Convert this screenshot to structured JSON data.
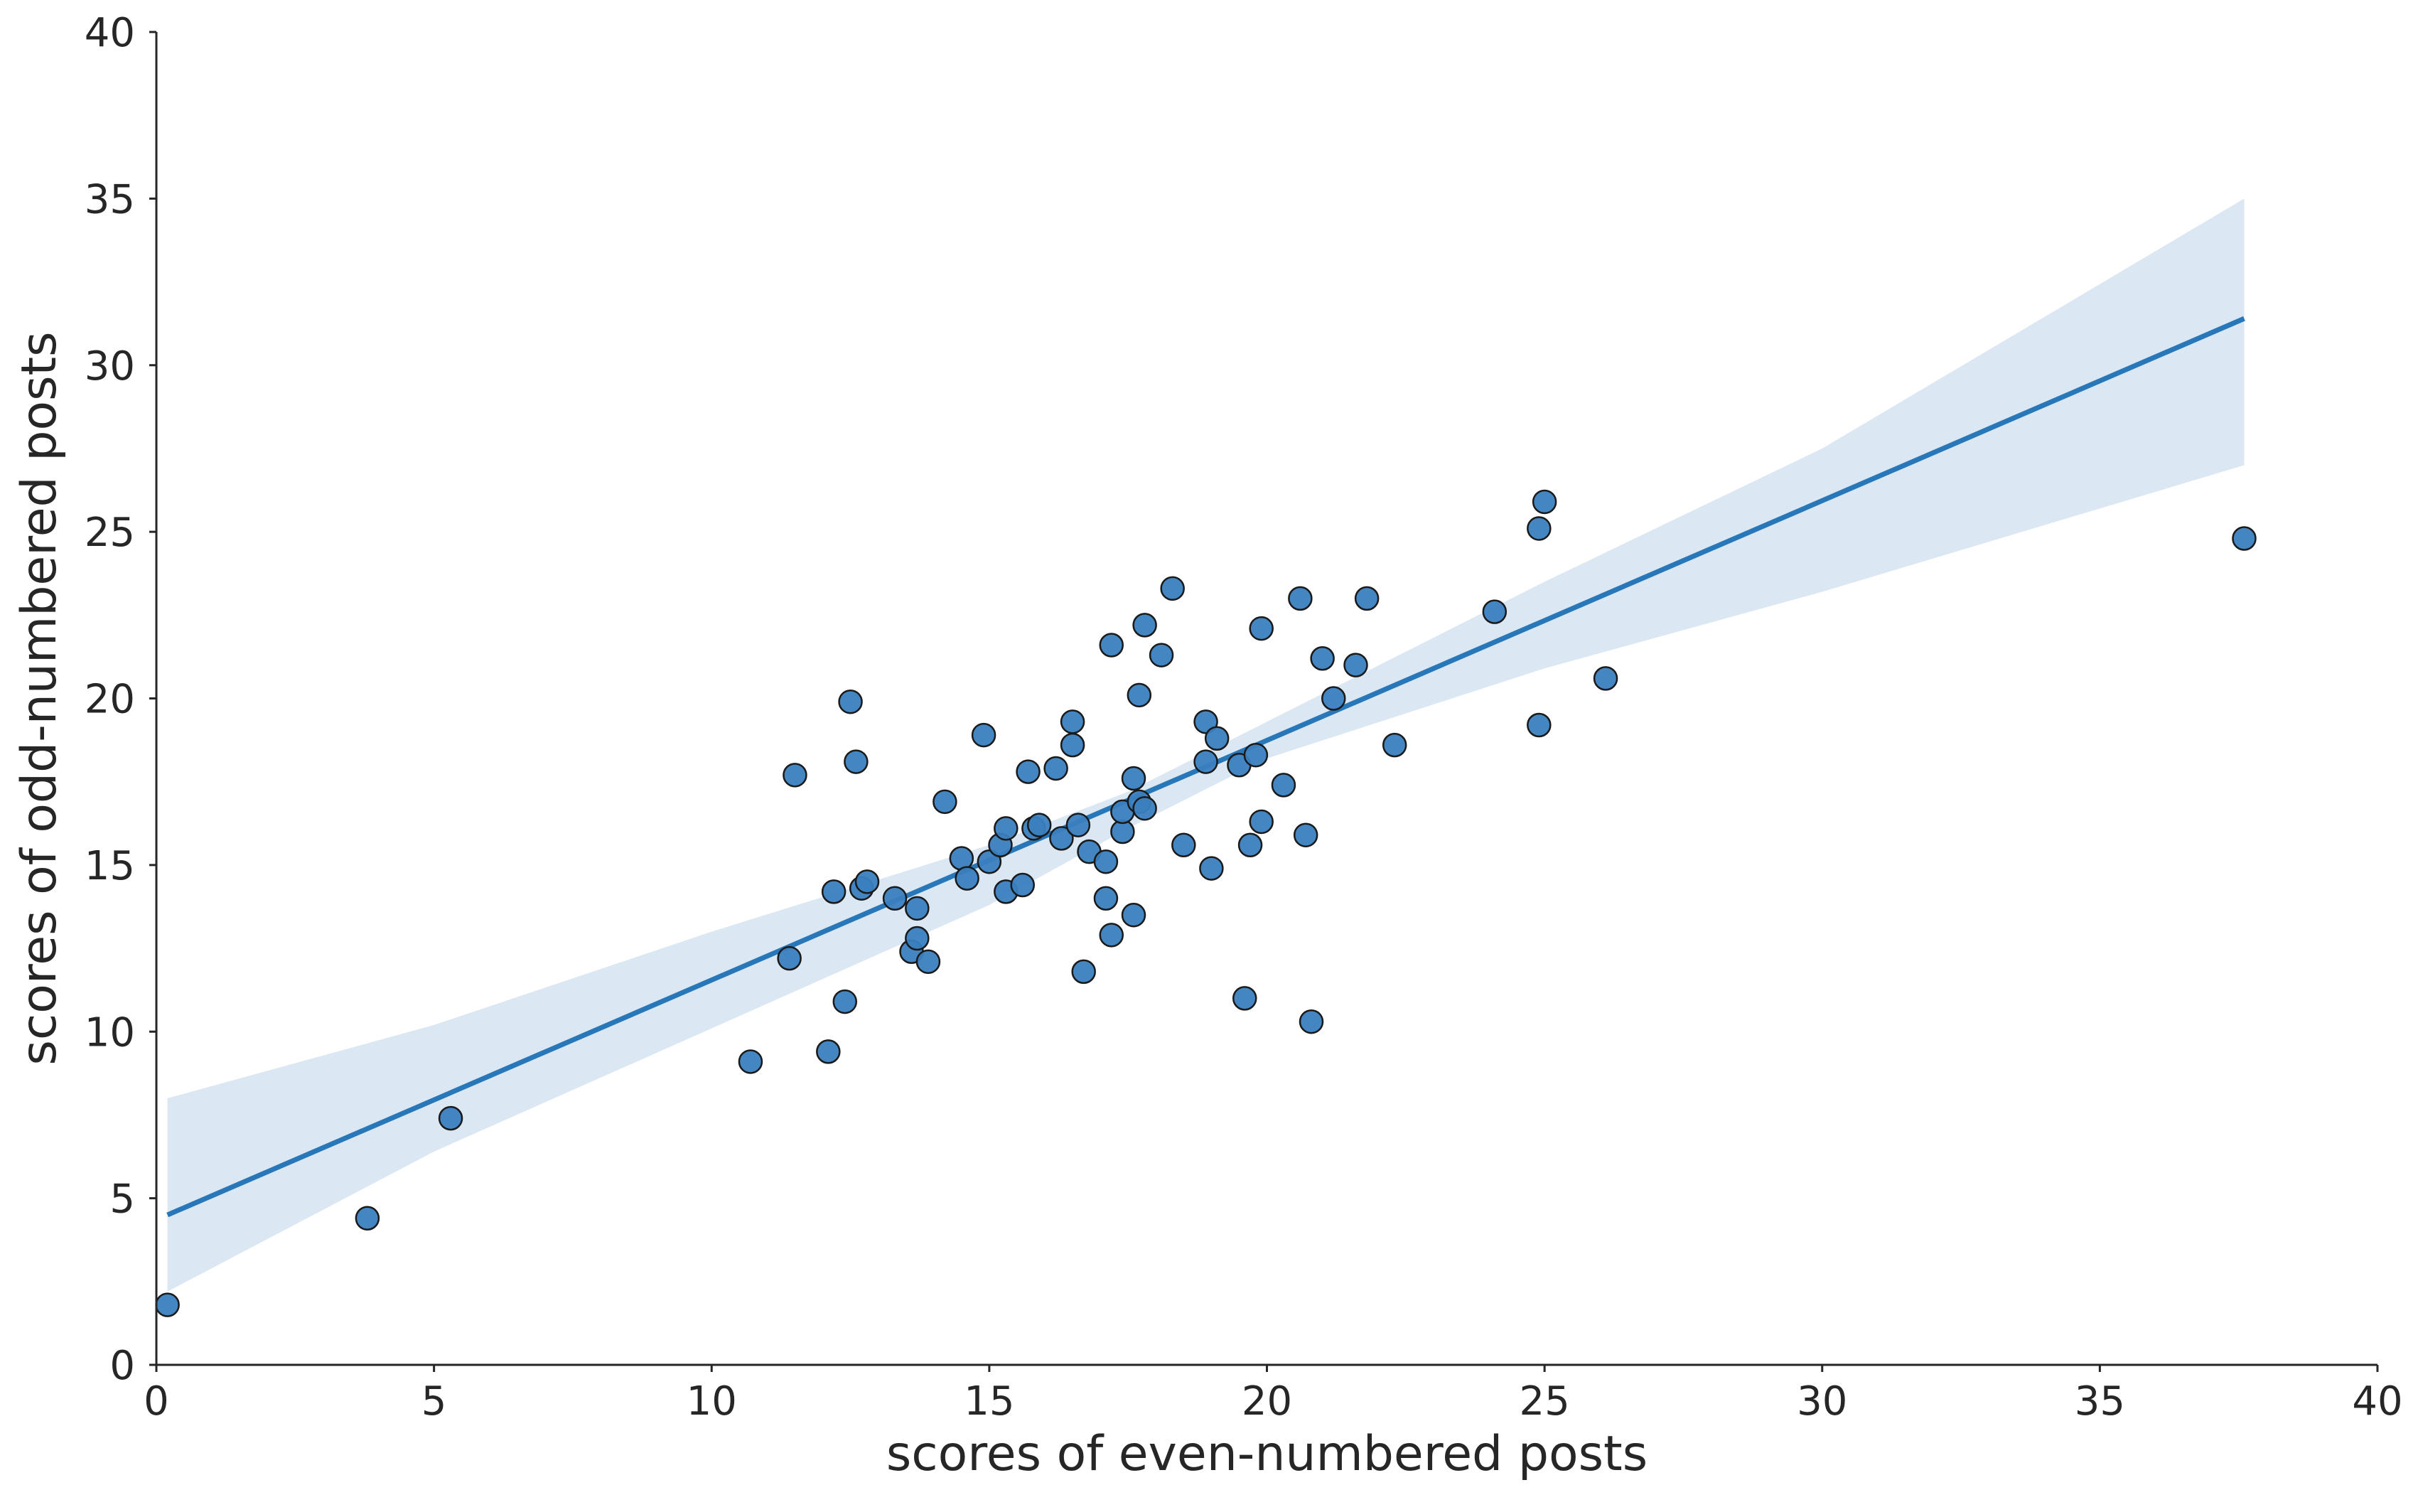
{
  "chart_data": {
    "type": "scatter",
    "title": "",
    "xlabel": "scores of even-numbered posts",
    "ylabel": "scores of odd-numbered posts",
    "xlim": [
      0,
      40
    ],
    "ylim": [
      0,
      40
    ],
    "xticks": [
      "0",
      "5",
      "10",
      "15",
      "20",
      "25",
      "30",
      "35",
      "40"
    ],
    "yticks": [
      "0",
      "5",
      "10",
      "15",
      "20",
      "25",
      "30",
      "35",
      "40"
    ],
    "grid": false,
    "colors": {
      "points": "#3a7fbf",
      "line": "#2878b9",
      "ci_band": "#dbe7f2"
    },
    "series": [
      {
        "type": "scatter",
        "x": [
          0.2,
          3.8,
          5.3,
          10.7,
          11.4,
          11.5,
          12.1,
          12.2,
          12.4,
          12.5,
          12.6,
          12.7,
          12.8,
          13.3,
          13.6,
          13.7,
          13.7,
          13.9,
          14.2,
          14.5,
          14.6,
          14.9,
          15.0,
          15.2,
          15.3,
          15.3,
          15.6,
          15.7,
          15.8,
          15.9,
          16.2,
          16.3,
          16.5,
          16.5,
          16.6,
          16.7,
          16.8,
          17.1,
          17.1,
          17.2,
          17.2,
          17.4,
          17.4,
          17.6,
          17.6,
          17.7,
          17.7,
          17.8,
          17.8,
          18.1,
          18.3,
          18.5,
          18.9,
          18.9,
          19.0,
          19.1,
          19.5,
          19.6,
          19.7,
          19.8,
          19.9,
          19.9,
          20.3,
          20.6,
          20.7,
          20.8,
          21.0,
          21.2,
          21.6,
          21.8,
          22.3,
          24.1,
          24.9,
          24.9,
          25.0,
          26.1,
          37.6
        ],
        "y": [
          1.8,
          4.4,
          7.4,
          9.1,
          12.2,
          17.7,
          9.4,
          14.2,
          10.9,
          19.9,
          18.1,
          14.3,
          14.5,
          14.0,
          12.4,
          12.8,
          13.7,
          12.1,
          16.9,
          15.2,
          14.6,
          18.9,
          15.1,
          15.6,
          14.2,
          16.1,
          14.4,
          17.8,
          16.1,
          16.2,
          17.9,
          15.8,
          18.6,
          19.3,
          16.2,
          11.8,
          15.4,
          14.0,
          15.1,
          12.9,
          21.6,
          16.0,
          16.6,
          17.6,
          13.5,
          16.9,
          20.1,
          16.7,
          22.2,
          21.3,
          23.3,
          15.6,
          19.3,
          18.1,
          14.9,
          18.8,
          18.0,
          11.0,
          15.6,
          18.3,
          16.3,
          22.1,
          17.4,
          23.0,
          15.9,
          10.3,
          21.2,
          20.0,
          21.0,
          23.0,
          18.6,
          22.6,
          19.2,
          25.1,
          25.9,
          20.6,
          24.8
        ]
      },
      {
        "type": "line",
        "name": "",
        "x": [
          0.2,
          37.6
        ],
        "y": [
          4.5,
          31.4
        ]
      }
    ],
    "ci_band": {
      "x": [
        0.2,
        5,
        10,
        15,
        17.5,
        20,
        25,
        30,
        37.6
      ],
      "lower": [
        2.2,
        6.4,
        10.1,
        13.8,
        16.1,
        18.2,
        20.9,
        23.2,
        27.0
      ],
      "upper": [
        8.0,
        10.2,
        13.0,
        15.6,
        17.2,
        19.3,
        23.5,
        27.5,
        35.0
      ]
    }
  }
}
